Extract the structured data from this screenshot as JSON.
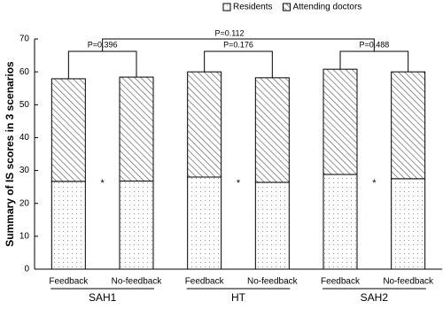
{
  "chart_data": {
    "type": "stacked_bar",
    "ylabel": "Summary of IS scores in 3 scenarios",
    "categories": [
      "Feedback",
      "No-feedback",
      "Feedback",
      "No-feedback",
      "Feedback",
      "No-feedback"
    ],
    "groups": [
      "SAH1",
      "HT",
      "SAH2"
    ],
    "series": [
      {
        "name": "Residents",
        "color": "#ffffff",
        "pattern": "dots",
        "values": [
          26.7,
          26.8,
          28.0,
          26.4,
          28.8,
          27.5
        ]
      },
      {
        "name": "Attending doctors",
        "color": "#ffffff",
        "pattern": "hatch",
        "values": [
          31.2,
          31.6,
          32.0,
          31.8,
          32.0,
          32.5
        ]
      }
    ],
    "annotations": [
      "P=0.396",
      "P=0.176",
      "P=0.488",
      "P=0.112",
      "*",
      "*",
      "*"
    ],
    "ylim": [
      0,
      70
    ],
    "yticks": [
      0,
      10,
      20,
      30,
      40,
      50,
      60,
      70
    ],
    "legend": "top"
  }
}
